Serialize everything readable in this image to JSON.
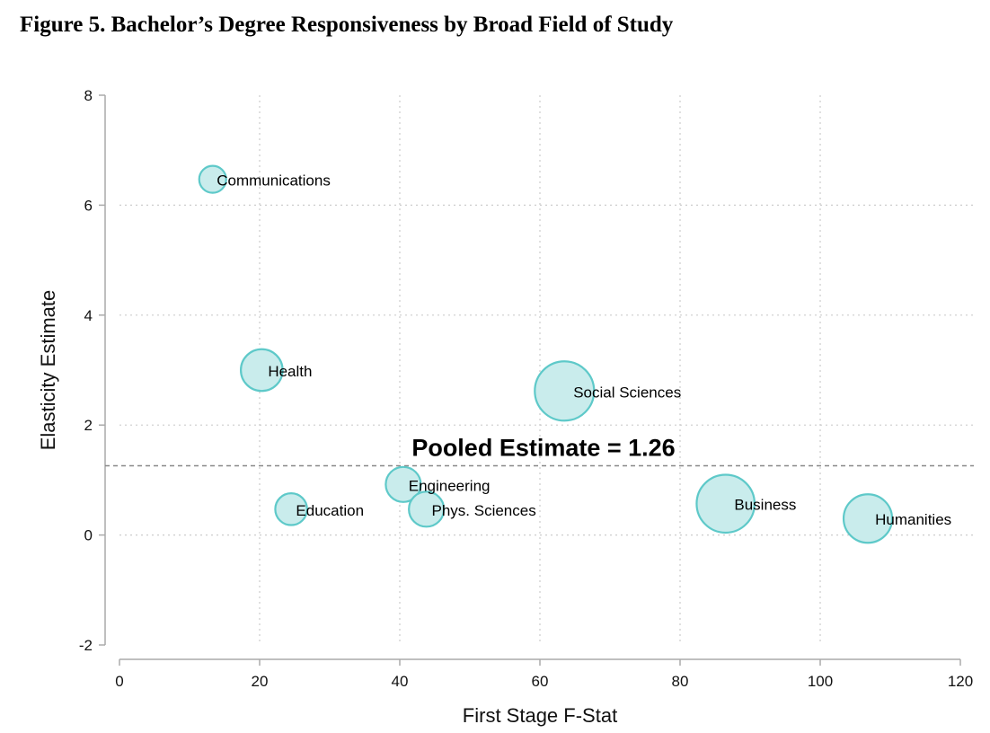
{
  "title": "Figure 5. Bachelor’s Degree Responsiveness by Broad Field of Study",
  "chart_data": {
    "type": "scatter",
    "xlabel": "First Stage F-Stat",
    "ylabel": "Elasticity Estimate",
    "xlim": [
      0,
      120
    ],
    "ylim": [
      -2,
      8
    ],
    "xticks": [
      0,
      20,
      40,
      60,
      80,
      100,
      120
    ],
    "yticks": [
      -2,
      0,
      2,
      4,
      6,
      8
    ],
    "grid": true,
    "marker_color": "#5ec9c9",
    "marker_fill": "#c9ecec",
    "points": [
      {
        "label": "Communications",
        "x": 13.3,
        "y": 6.47,
        "size": 1.0
      },
      {
        "label": "Health",
        "x": 20.3,
        "y": 3.0,
        "size": 1.55
      },
      {
        "label": "Social Sciences",
        "x": 63.5,
        "y": 2.62,
        "size": 2.2
      },
      {
        "label": "Engineering",
        "x": 40.5,
        "y": 0.92,
        "size": 1.3
      },
      {
        "label": "Education",
        "x": 24.5,
        "y": 0.47,
        "size": 1.18
      },
      {
        "label": "Phys. Sciences",
        "x": 43.8,
        "y": 0.47,
        "size": 1.3
      },
      {
        "label": "Business",
        "x": 86.5,
        "y": 0.57,
        "size": 2.15
      },
      {
        "label": "Humanities",
        "x": 106.8,
        "y": 0.3,
        "size": 1.8
      }
    ],
    "reference_line": {
      "label": "Pooled Estimate = 1.26",
      "y": 1.26,
      "color": "#888888"
    }
  }
}
